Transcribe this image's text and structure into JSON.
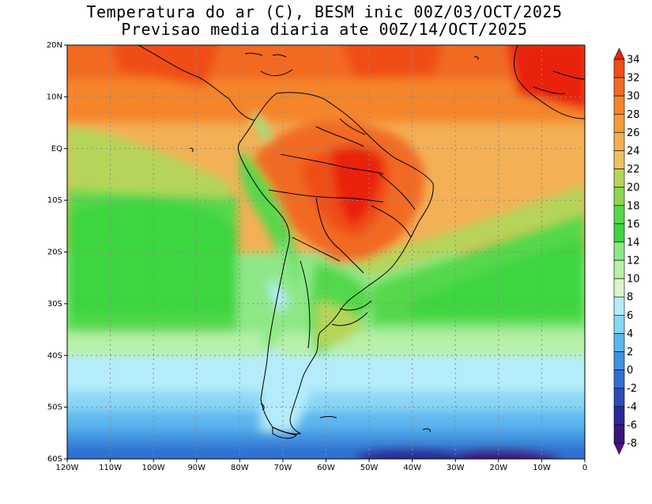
{
  "title_line1": "Temperatura do ar (C), BESM inic 00Z/03/OCT/2025",
  "title_line2": "Previsao media diaria ate 00Z/14/OCT/2025",
  "map": {
    "lon_range": [
      -120,
      0
    ],
    "lat_range": [
      -60,
      20
    ],
    "x_ticks": [
      "120W",
      "110W",
      "100W",
      "90W",
      "80W",
      "70W",
      "60W",
      "50W",
      "40W",
      "30W",
      "20W",
      "10W",
      "0"
    ],
    "y_ticks": [
      "20N",
      "10N",
      "EQ",
      "10S",
      "20S",
      "30S",
      "40S",
      "50S",
      "60S"
    ],
    "grid": "dotted"
  },
  "colorbar": {
    "labels": [
      "34",
      "32",
      "30",
      "28",
      "26",
      "24",
      "22",
      "20",
      "18",
      "16",
      "14",
      "12",
      "10",
      "8",
      "6",
      "4",
      "2",
      "0",
      "-2",
      "-4",
      "-6",
      "-8"
    ],
    "colors": [
      "#e8240f",
      "#f04d18",
      "#f26a22",
      "#f5852a",
      "#f49a3a",
      "#f3b055",
      "#eec05f",
      "#b5d55a",
      "#8ed650",
      "#55d84c",
      "#3cd53f",
      "#8ee887",
      "#b8f0a8",
      "#d8f7c8",
      "#b5ecfb",
      "#8ad6f5",
      "#5cb6ee",
      "#3f92df",
      "#336fd1",
      "#2a4db8",
      "#2a2a96",
      "#3a1680",
      "#5a0a88"
    ]
  }
}
